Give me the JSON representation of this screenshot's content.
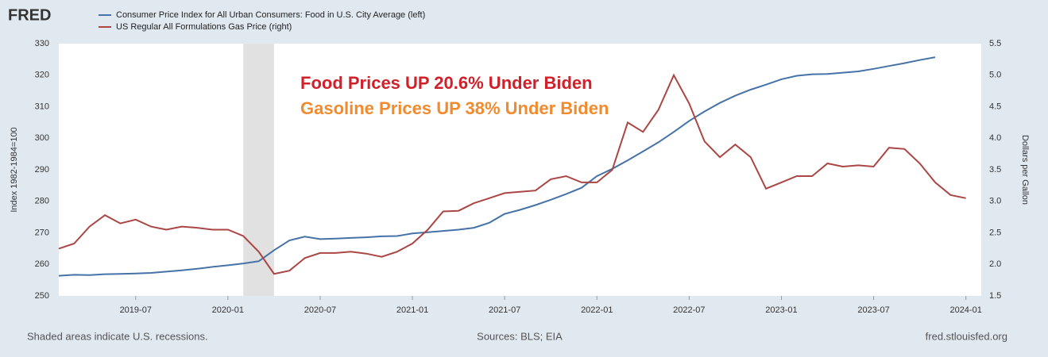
{
  "chart_data": {
    "type": "line",
    "logo": "FRED",
    "x": [
      "2019-02",
      "2019-03",
      "2019-04",
      "2019-05",
      "2019-06",
      "2019-07",
      "2019-08",
      "2019-09",
      "2019-10",
      "2019-11",
      "2019-12",
      "2020-01",
      "2020-02",
      "2020-03",
      "2020-04",
      "2020-05",
      "2020-06",
      "2020-07",
      "2020-08",
      "2020-09",
      "2020-10",
      "2020-11",
      "2020-12",
      "2021-01",
      "2021-02",
      "2021-03",
      "2021-04",
      "2021-05",
      "2021-06",
      "2021-07",
      "2021-08",
      "2021-09",
      "2021-10",
      "2021-11",
      "2021-12",
      "2022-01",
      "2022-02",
      "2022-03",
      "2022-04",
      "2022-05",
      "2022-06",
      "2022-07",
      "2022-08",
      "2022-09",
      "2022-10",
      "2022-11",
      "2022-12",
      "2023-01",
      "2023-02",
      "2023-03",
      "2023-04",
      "2023-05",
      "2023-06",
      "2023-07",
      "2023-08",
      "2023-09",
      "2023-10",
      "2023-11",
      "2023-12",
      "2024-01"
    ],
    "series": [
      {
        "name": "Consumer Price Index for All Urban Consumers: Food in U.S. City Average (left)",
        "color": "#4572a7",
        "axis": "y",
        "values": [
          256.4,
          256.7,
          256.6,
          256.9,
          257.0,
          257.1,
          257.3,
          257.7,
          258.1,
          258.6,
          259.2,
          259.7,
          260.3,
          261.0,
          264.5,
          267.6,
          268.8,
          268.0,
          268.2,
          268.4,
          268.6,
          268.9,
          269.0,
          269.8,
          270.2,
          270.6,
          271.0,
          271.6,
          273.2,
          276.0,
          277.3,
          278.8,
          280.5,
          282.3,
          284.3,
          288.0,
          290.3,
          293.0,
          295.8,
          298.7,
          302.0,
          305.5,
          308.5,
          311.2,
          313.5,
          315.4,
          317.0,
          318.7,
          319.8,
          320.3,
          320.4,
          320.8,
          321.2,
          322.0,
          322.9,
          323.8,
          324.8,
          325.7,
          null,
          null
        ]
      },
      {
        "name": "US Regular All Formulations Gas Price (right)",
        "color": "#aa4643",
        "axis": "y2",
        "values": [
          2.25,
          2.33,
          2.6,
          2.78,
          2.65,
          2.71,
          2.6,
          2.55,
          2.6,
          2.58,
          2.55,
          2.55,
          2.45,
          2.2,
          1.85,
          1.9,
          2.1,
          2.18,
          2.18,
          2.2,
          2.17,
          2.12,
          2.2,
          2.33,
          2.55,
          2.84,
          2.85,
          2.97,
          3.05,
          3.13,
          3.15,
          3.17,
          3.35,
          3.4,
          3.3,
          3.3,
          3.5,
          4.25,
          4.1,
          4.45,
          5.0,
          4.55,
          3.95,
          3.7,
          3.9,
          3.7,
          3.2,
          3.3,
          3.4,
          3.4,
          3.6,
          3.55,
          3.57,
          3.55,
          3.85,
          3.83,
          3.6,
          3.3,
          3.1,
          3.05
        ]
      }
    ],
    "xlim": [
      "2019-02",
      "2024-02"
    ],
    "xticks": [
      "2019-07",
      "2020-01",
      "2020-07",
      "2021-01",
      "2021-07",
      "2022-01",
      "2022-07",
      "2023-01",
      "2023-07",
      "2024-01"
    ],
    "ylim": [
      250,
      330
    ],
    "yticks": [
      250,
      260,
      270,
      280,
      290,
      300,
      310,
      320,
      330
    ],
    "y2lim": [
      1.5,
      5.5
    ],
    "y2ticks": [
      1.5,
      {
        "value": 2,
        "label": "2.0"
      },
      2.5,
      {
        "value": 3,
        "label": "3.0"
      },
      3.5,
      {
        "value": 4,
        "label": "4.0"
      },
      4.5,
      {
        "value": 5,
        "label": "5.0"
      },
      5.5
    ],
    "ylabel": "Index 1982-1984=100",
    "y2label": "Dollars per Gallon",
    "recessions": [
      {
        "start": "2020-02",
        "end": "2020-04"
      }
    ],
    "annotations": [
      {
        "text": "Food Prices UP 20.6% Under Biden",
        "color": "#d0202a"
      },
      {
        "text": "Gasoline Prices UP 38% Under Biden",
        "color": "#f28a2e"
      }
    ],
    "recession_note": "Shaded areas indicate U.S. recessions.",
    "source": "Sources: BLS; EIA",
    "site": "fred.stlouisfed.org"
  }
}
